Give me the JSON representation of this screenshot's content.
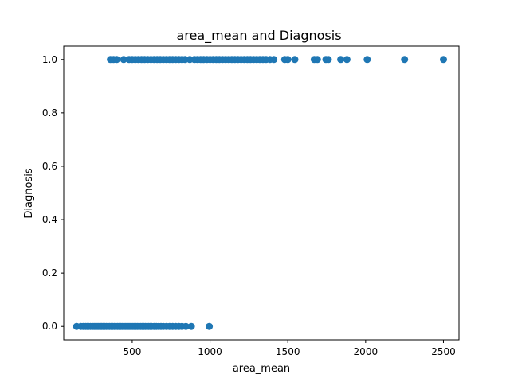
{
  "chart_data": {
    "type": "scatter",
    "title": "area_mean and Diagnosis",
    "xlabel": "area_mean",
    "ylabel": "Diagnosis",
    "xlim": [
      60,
      2600
    ],
    "ylim": [
      -0.05,
      1.05
    ],
    "xticks": [
      500,
      1000,
      1500,
      2000,
      2500
    ],
    "xtick_labels": [
      "500",
      "1000",
      "1500",
      "2000",
      "2500"
    ],
    "yticks": [
      0.0,
      0.2,
      0.4,
      0.6,
      0.8,
      1.0
    ],
    "ytick_labels": [
      "0.0",
      "0.2",
      "0.4",
      "0.6",
      "0.8",
      "1.0"
    ],
    "grid": false,
    "marker_color": "#1f77b4",
    "series": [
      {
        "y": 0,
        "x": [
          143,
          170,
          185,
          200,
          210,
          220,
          232,
          245,
          255,
          265,
          275,
          285,
          295,
          305,
          315,
          325,
          335,
          345,
          355,
          365,
          375,
          385,
          395,
          405,
          415,
          425,
          435,
          445,
          455,
          465,
          475,
          485,
          495,
          505,
          515,
          525,
          535,
          545,
          555,
          565,
          575,
          585,
          595,
          605,
          615,
          625,
          640,
          655,
          670,
          685,
          700,
          720,
          740,
          760,
          780,
          800,
          820,
          845,
          880,
          995
        ]
      },
      {
        "y": 1,
        "x": [
          360,
          380,
          400,
          445,
          480,
          500,
          520,
          540,
          560,
          580,
          600,
          620,
          640,
          660,
          680,
          700,
          720,
          740,
          760,
          780,
          800,
          820,
          840,
          870,
          900,
          920,
          940,
          960,
          980,
          1000,
          1020,
          1040,
          1060,
          1080,
          1100,
          1120,
          1140,
          1160,
          1180,
          1200,
          1220,
          1240,
          1260,
          1280,
          1300,
          1320,
          1340,
          1360,
          1385,
          1410,
          1480,
          1500,
          1545,
          1670,
          1690,
          1745,
          1760,
          1840,
          1880,
          2010,
          2250,
          2500
        ]
      }
    ]
  }
}
